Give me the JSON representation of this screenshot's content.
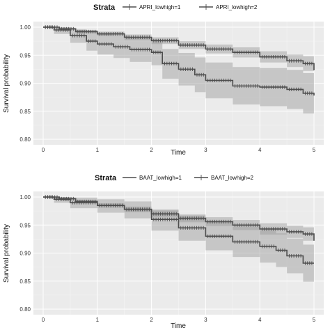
{
  "chart_data": [
    {
      "type": "line",
      "legend_title": "Strata",
      "legend_position": "top",
      "xlabel": "Time",
      "ylabel": "Survival probability",
      "xlim": [
        0,
        5
      ],
      "ylim": [
        0.8,
        1.0
      ],
      "x_ticks": [
        0,
        1,
        2,
        3,
        4,
        5
      ],
      "y_ticks": [
        0.8,
        0.85,
        0.9,
        0.95,
        1.0
      ],
      "y_tick_labels": [
        "0.80",
        "0.85",
        "0.90",
        "0.95",
        "1.00"
      ],
      "grid": true,
      "series": [
        {
          "name": "APRI_lowhigh=1",
          "color": "#4d4d4d",
          "points": [
            [
              0,
              1.0
            ],
            [
              0.3,
              0.997
            ],
            [
              0.6,
              0.992
            ],
            [
              1.0,
              0.988
            ],
            [
              1.5,
              0.982
            ],
            [
              2.0,
              0.976
            ],
            [
              2.5,
              0.968
            ],
            [
              3.0,
              0.961
            ],
            [
              3.5,
              0.955
            ],
            [
              4.0,
              0.947
            ],
            [
              4.5,
              0.94
            ],
            [
              4.8,
              0.935
            ],
            [
              5.0,
              0.923
            ]
          ],
          "lower": [
            [
              0,
              1.0
            ],
            [
              0.3,
              0.995
            ],
            [
              0.6,
              0.989
            ],
            [
              1.0,
              0.984
            ],
            [
              1.5,
              0.977
            ],
            [
              2.0,
              0.97
            ],
            [
              2.5,
              0.961
            ],
            [
              3.0,
              0.953
            ],
            [
              3.5,
              0.946
            ],
            [
              4.0,
              0.937
            ],
            [
              4.5,
              0.929
            ],
            [
              4.8,
              0.922
            ],
            [
              5.0,
              0.905
            ]
          ],
          "upper": [
            [
              0,
              1.0
            ],
            [
              0.3,
              0.999
            ],
            [
              0.6,
              0.995
            ],
            [
              1.0,
              0.992
            ],
            [
              1.5,
              0.987
            ],
            [
              2.0,
              0.982
            ],
            [
              2.5,
              0.975
            ],
            [
              3.0,
              0.969
            ],
            [
              3.5,
              0.964
            ],
            [
              4.0,
              0.957
            ],
            [
              4.5,
              0.951
            ],
            [
              4.8,
              0.948
            ],
            [
              5.0,
              0.941
            ]
          ]
        },
        {
          "name": "APRI_lowhigh=2",
          "color": "#4d4d4d",
          "points": [
            [
              0,
              1.0
            ],
            [
              0.2,
              0.995
            ],
            [
              0.5,
              0.985
            ],
            [
              0.8,
              0.975
            ],
            [
              1.0,
              0.97
            ],
            [
              1.3,
              0.965
            ],
            [
              1.6,
              0.96
            ],
            [
              2.0,
              0.955
            ],
            [
              2.2,
              0.935
            ],
            [
              2.5,
              0.925
            ],
            [
              2.8,
              0.915
            ],
            [
              3.0,
              0.905
            ],
            [
              3.5,
              0.895
            ],
            [
              4.0,
              0.893
            ],
            [
              4.5,
              0.889
            ],
            [
              4.8,
              0.882
            ],
            [
              5.0,
              0.878
            ]
          ],
          "lower": [
            [
              0,
              1.0
            ],
            [
              0.2,
              0.988
            ],
            [
              0.5,
              0.972
            ],
            [
              0.8,
              0.958
            ],
            [
              1.0,
              0.951
            ],
            [
              1.3,
              0.945
            ],
            [
              1.6,
              0.938
            ],
            [
              2.0,
              0.932
            ],
            [
              2.2,
              0.908
            ],
            [
              2.5,
              0.896
            ],
            [
              2.8,
              0.884
            ],
            [
              3.0,
              0.873
            ],
            [
              3.5,
              0.862
            ],
            [
              4.0,
              0.859
            ],
            [
              4.5,
              0.854
            ],
            [
              4.8,
              0.846
            ],
            [
              5.0,
              0.842
            ]
          ],
          "upper": [
            [
              0,
              1.0
            ],
            [
              0.2,
              1.0
            ],
            [
              0.5,
              0.996
            ],
            [
              0.8,
              0.991
            ],
            [
              1.0,
              0.988
            ],
            [
              1.3,
              0.985
            ],
            [
              1.6,
              0.981
            ],
            [
              2.0,
              0.977
            ],
            [
              2.2,
              0.961
            ],
            [
              2.5,
              0.954
            ],
            [
              2.8,
              0.946
            ],
            [
              3.0,
              0.937
            ],
            [
              3.5,
              0.929
            ],
            [
              4.0,
              0.927
            ],
            [
              4.5,
              0.924
            ],
            [
              4.8,
              0.918
            ],
            [
              5.0,
              0.914
            ]
          ]
        }
      ]
    },
    {
      "type": "line",
      "legend_title": "Strata",
      "legend_position": "top",
      "xlabel": "Time",
      "ylabel": "Survival probability",
      "xlim": [
        0,
        5
      ],
      "ylim": [
        0.8,
        1.0
      ],
      "x_ticks": [
        0,
        1,
        2,
        3,
        4,
        5
      ],
      "y_ticks": [
        0.8,
        0.85,
        0.9,
        0.95,
        1.0
      ],
      "y_tick_labels": [
        "0.80",
        "0.85",
        "0.90",
        "0.95",
        "1.00"
      ],
      "grid": true,
      "series": [
        {
          "name": "BAAT_lowhigh=1",
          "color": "#4d4d4d",
          "points": [
            [
              0,
              1.0
            ],
            [
              0.3,
              0.997
            ],
            [
              0.6,
              0.992
            ],
            [
              1.0,
              0.985
            ],
            [
              1.5,
              0.978
            ],
            [
              2.0,
              0.97
            ],
            [
              2.5,
              0.962
            ],
            [
              3.0,
              0.956
            ],
            [
              3.5,
              0.95
            ],
            [
              4.0,
              0.943
            ],
            [
              4.5,
              0.938
            ],
            [
              4.8,
              0.934
            ],
            [
              5.0,
              0.922
            ]
          ],
          "lower": [
            [
              0,
              1.0
            ],
            [
              0.3,
              0.995
            ],
            [
              0.6,
              0.989
            ],
            [
              1.0,
              0.981
            ],
            [
              1.5,
              0.973
            ],
            [
              2.0,
              0.964
            ],
            [
              2.5,
              0.955
            ],
            [
              3.0,
              0.948
            ],
            [
              3.5,
              0.941
            ],
            [
              4.0,
              0.933
            ],
            [
              4.5,
              0.927
            ],
            [
              4.8,
              0.922
            ],
            [
              5.0,
              0.905
            ]
          ],
          "upper": [
            [
              0,
              1.0
            ],
            [
              0.3,
              0.999
            ],
            [
              0.6,
              0.995
            ],
            [
              1.0,
              0.989
            ],
            [
              1.5,
              0.983
            ],
            [
              2.0,
              0.976
            ],
            [
              2.5,
              0.969
            ],
            [
              3.0,
              0.964
            ],
            [
              3.5,
              0.959
            ],
            [
              4.0,
              0.953
            ],
            [
              4.5,
              0.949
            ],
            [
              4.8,
              0.946
            ],
            [
              5.0,
              0.939
            ]
          ]
        },
        {
          "name": "BAAT_lowhigh=2",
          "color": "#4d4d4d",
          "points": [
            [
              0,
              1.0
            ],
            [
              0.2,
              0.996
            ],
            [
              0.5,
              0.99
            ],
            [
              1.0,
              0.985
            ],
            [
              1.5,
              0.978
            ],
            [
              2.0,
              0.96
            ],
            [
              2.5,
              0.945
            ],
            [
              3.0,
              0.93
            ],
            [
              3.5,
              0.92
            ],
            [
              4.0,
              0.912
            ],
            [
              4.3,
              0.905
            ],
            [
              4.5,
              0.895
            ],
            [
              4.8,
              0.882
            ],
            [
              5.0,
              0.882
            ]
          ],
          "lower": [
            [
              0,
              1.0
            ],
            [
              0.2,
              0.99
            ],
            [
              0.5,
              0.98
            ],
            [
              1.0,
              0.972
            ],
            [
              1.5,
              0.962
            ],
            [
              2.0,
              0.94
            ],
            [
              2.5,
              0.922
            ],
            [
              3.0,
              0.905
            ],
            [
              3.5,
              0.893
            ],
            [
              4.0,
              0.883
            ],
            [
              4.3,
              0.875
            ],
            [
              4.5,
              0.864
            ],
            [
              4.8,
              0.849
            ],
            [
              5.0,
              0.848
            ]
          ],
          "upper": [
            [
              0,
              1.0
            ],
            [
              0.2,
              1.0
            ],
            [
              0.5,
              0.999
            ],
            [
              1.0,
              0.996
            ],
            [
              1.5,
              0.992
            ],
            [
              2.0,
              0.978
            ],
            [
              2.5,
              0.967
            ],
            [
              3.0,
              0.955
            ],
            [
              3.5,
              0.947
            ],
            [
              4.0,
              0.941
            ],
            [
              4.3,
              0.935
            ],
            [
              4.5,
              0.926
            ],
            [
              4.8,
              0.915
            ],
            [
              5.0,
              0.915
            ]
          ]
        }
      ]
    }
  ]
}
